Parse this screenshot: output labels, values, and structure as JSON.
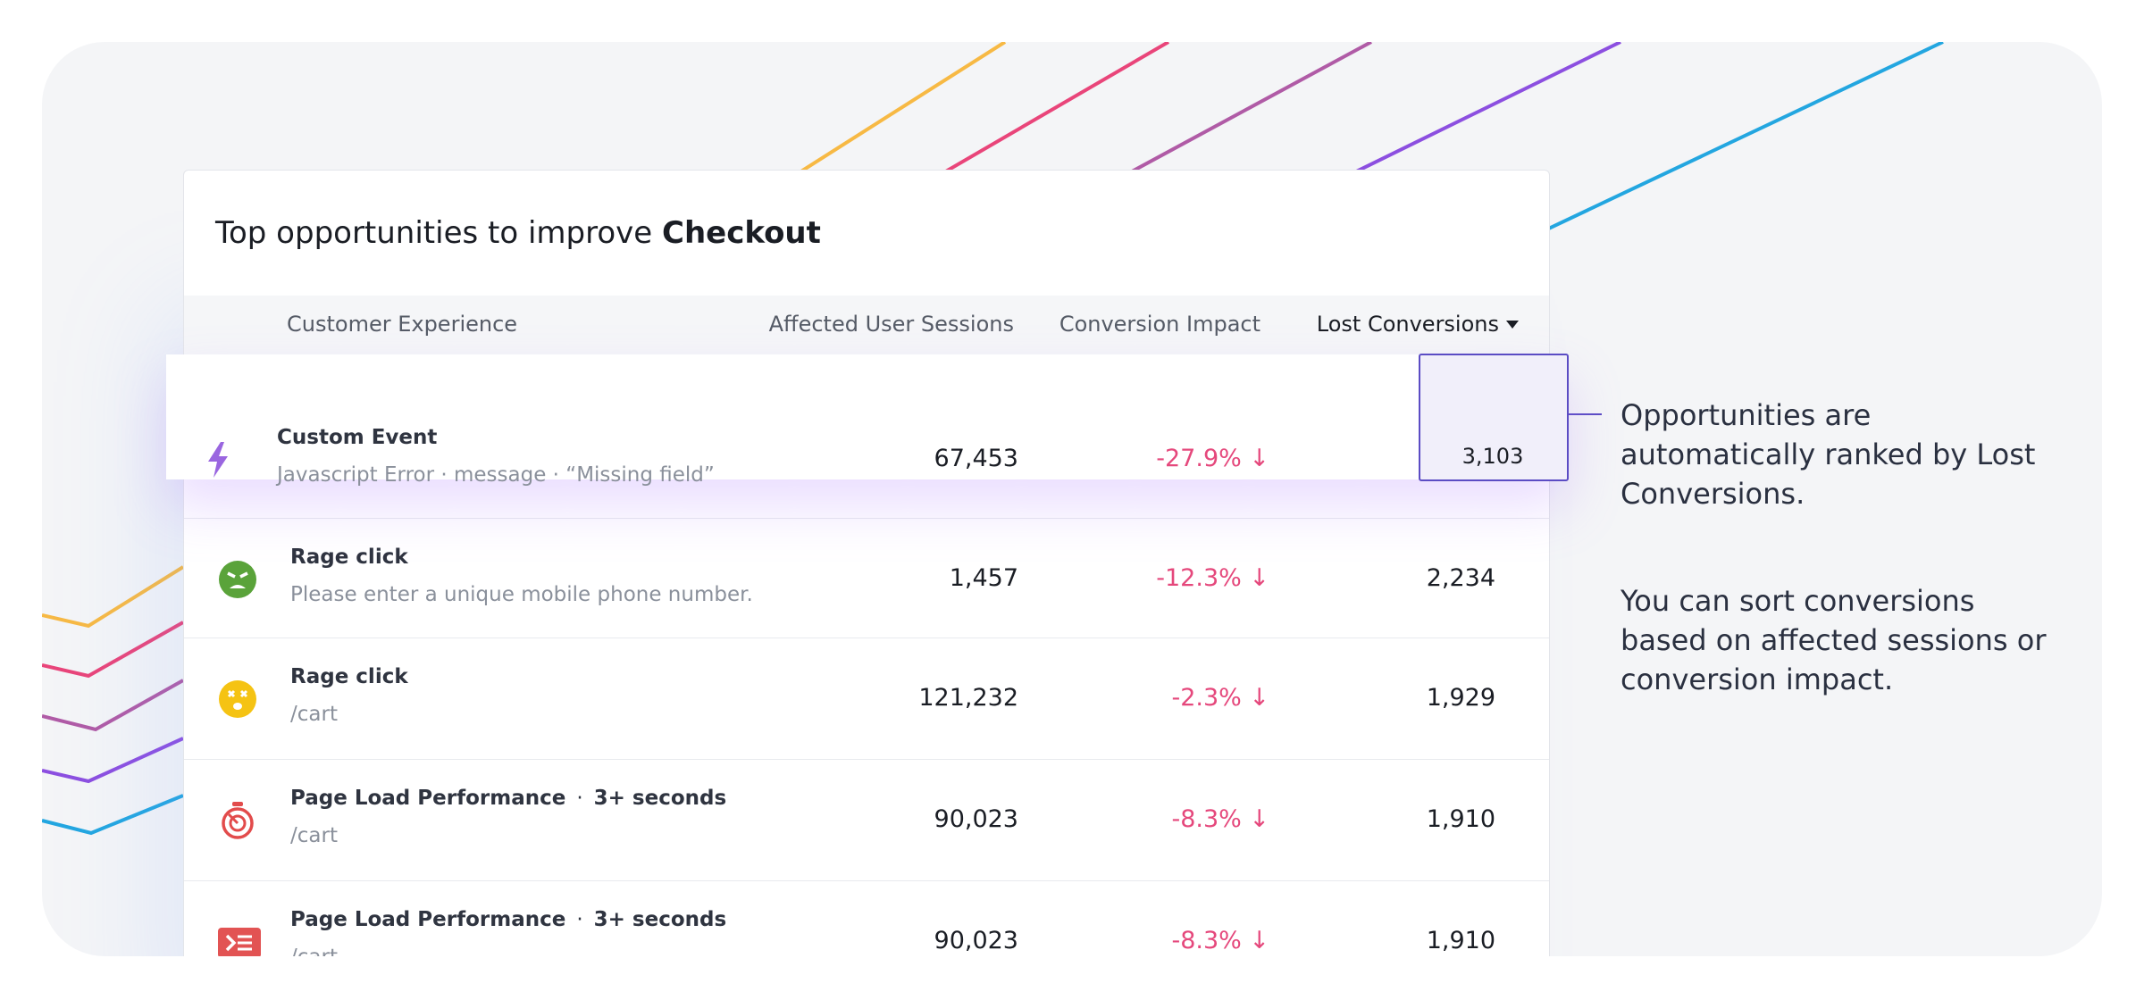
{
  "header": {
    "title": "Top opportunities to improve ",
    "title_bold": "Checkout"
  },
  "table": {
    "columns": [
      "Customer Experience",
      "Affected User Sessions",
      "Conversion Impact",
      "Lost Conversions"
    ],
    "rows": [
      {
        "title": "Custom Event",
        "subtitle": "Javascript Error  ·  message  ·  “Missing field”",
        "sessions": "67,453",
        "impact": "-27.9% ↓",
        "lost": "3,103"
      },
      {
        "title": "Rage click",
        "subtitle": "Please enter a unique mobile phone number.",
        "sessions": "1,457",
        "impact": "-12.3% ↓",
        "lost": "2,234"
      },
      {
        "title": "Rage click",
        "subtitle": "/cart",
        "sessions": "121,232",
        "impact": "-2.3% ↓",
        "lost": "1,929"
      },
      {
        "title": "Page Load Performance",
        "tag": "3+ seconds",
        "subtitle": "/cart",
        "sessions": "90,023",
        "impact": "-8.3% ↓",
        "lost": "1,910"
      },
      {
        "title": "Page Load Performance",
        "tag": "3+ seconds",
        "subtitle": "/cart",
        "sessions": "90,023",
        "impact": "-8.3% ↓",
        "lost": "1,910"
      }
    ]
  },
  "annotations": [
    "Opportunities are automatically ranked by Lost Conversions.",
    "You can sort conversions based on affected sessions or conversion impact."
  ]
}
